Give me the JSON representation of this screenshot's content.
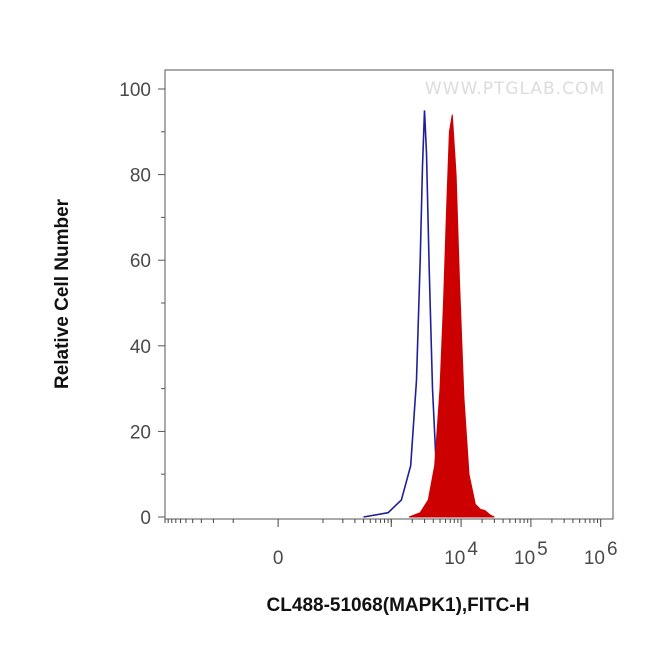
{
  "chart_data": {
    "type": "area",
    "title": "",
    "xlabel": "CL488-51068(MAPK1),FITC-H",
    "ylabel": "Relative Cell Number",
    "watermark": "WWW.PTGLAB.COM",
    "x_scale": "biexponential",
    "xlim": [
      -1000,
      1500000
    ],
    "ylim": [
      0,
      100
    ],
    "y_ticks": [
      0,
      20,
      40,
      60,
      80,
      100
    ],
    "x_ticks": [
      {
        "value": 0,
        "base": "0",
        "exp": ""
      },
      {
        "value": 10000,
        "base": "10",
        "exp": "4"
      },
      {
        "value": 100000,
        "base": "10",
        "exp": "5"
      },
      {
        "value": 1000000,
        "base": "10",
        "exp": "6"
      }
    ],
    "grid": false,
    "series": [
      {
        "style": "outline",
        "color": "#1f1f9a",
        "x": [
          400,
          900,
          1400,
          1900,
          2300,
          2600,
          2800,
          3000,
          3200,
          3500,
          3900,
          4400,
          5000,
          5600,
          6200,
          7000
        ],
        "values": [
          0,
          1,
          4,
          12,
          32,
          60,
          82,
          95,
          85,
          58,
          30,
          12,
          4,
          1.5,
          0.5,
          0
        ]
      },
      {
        "style": "filled",
        "color": "#cc0000",
        "x": [
          1800,
          2600,
          3400,
          4200,
          5000,
          5600,
          6200,
          6800,
          7500,
          8500,
          9500,
          11000,
          13000,
          16000,
          19000,
          22000,
          26000,
          30000
        ],
        "values": [
          0,
          1,
          4,
          12,
          30,
          50,
          72,
          90,
          94,
          80,
          55,
          28,
          10,
          3,
          1.8,
          1.5,
          0.5,
          0
        ]
      }
    ]
  }
}
